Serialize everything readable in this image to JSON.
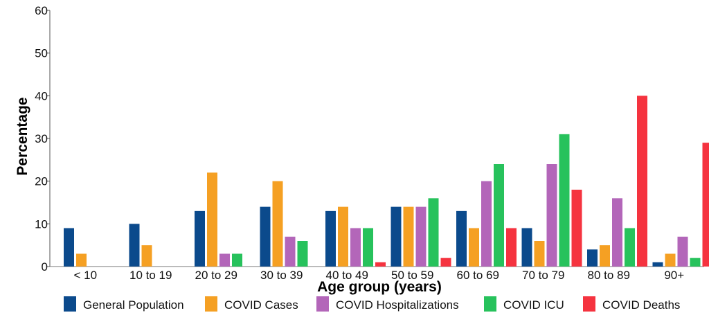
{
  "chart_data": {
    "type": "bar",
    "xlabel": "Age group (years)",
    "ylabel": "Percentage",
    "ylim": [
      0,
      60
    ],
    "yticks": [
      0,
      10,
      20,
      30,
      40,
      50,
      60
    ],
    "grid": false,
    "legend_position": "bottom",
    "categories": [
      "< 10",
      "10 to 19",
      "20 to 29",
      "30 to 39",
      "40 to 49",
      "50 to 59",
      "60 to 69",
      "70 to 79",
      "80 to 89",
      "90+"
    ],
    "series": [
      {
        "name": "General Population",
        "color": "#0b4a8c",
        "values": [
          9,
          10,
          13,
          14,
          13,
          14,
          13,
          9,
          4,
          1
        ]
      },
      {
        "name": "COVID Cases",
        "color": "#f5a023",
        "values": [
          3,
          5,
          22,
          20,
          14,
          14,
          9,
          6,
          5,
          3
        ]
      },
      {
        "name": "COVID Hospitalizations",
        "color": "#b366b9",
        "values": [
          0,
          0,
          3,
          7,
          9,
          14,
          20,
          24,
          16,
          7
        ]
      },
      {
        "name": "COVID ICU",
        "color": "#27c25c",
        "values": [
          0,
          0,
          3,
          6,
          9,
          16,
          24,
          31,
          9,
          2
        ]
      },
      {
        "name": "COVID Deaths",
        "color": "#f5333f",
        "values": [
          0,
          0,
          0,
          0,
          1,
          2,
          9,
          18,
          40,
          29
        ]
      }
    ]
  }
}
